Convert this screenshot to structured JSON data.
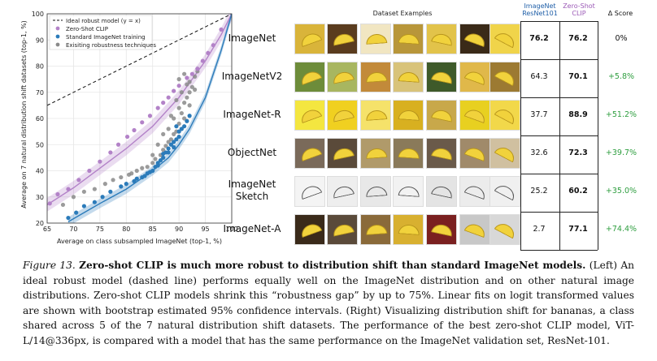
{
  "chart_data": {
    "type": "scatter",
    "xlabel": "Average on class subsampled ImageNet (top-1, %)",
    "ylabel": "Average on 7 natural distribution shift datasets (top-1, %)",
    "xlim": [
      65,
      100
    ],
    "ylim": [
      20,
      100
    ],
    "xticks": [
      "65",
      "70",
      "75",
      "80",
      "85",
      "90",
      "95",
      "100"
    ],
    "yticks": [
      "20",
      "30",
      "40",
      "50",
      "60",
      "70",
      "80",
      "90",
      "100"
    ],
    "legend": [
      {
        "label": "Ideal robust model (y = x)",
        "color": "#111111",
        "style": "dashed"
      },
      {
        "label": "Zero-Shot CLIP",
        "color": "#b382c8",
        "style": "dot"
      },
      {
        "label": "Standard ImageNet training",
        "color": "#2b7bba",
        "style": "dot"
      },
      {
        "label": "Exisiting robustness techniques",
        "color": "#8a8a8a",
        "style": "dot"
      }
    ],
    "clip_points": [
      [
        65.5,
        27.5
      ],
      [
        67,
        31
      ],
      [
        69,
        33
      ],
      [
        71,
        36.5
      ],
      [
        73,
        40
      ],
      [
        75,
        43.5
      ],
      [
        77,
        47
      ],
      [
        78.5,
        50
      ],
      [
        80.2,
        53
      ],
      [
        81.5,
        55.5
      ],
      [
        83,
        58.5
      ],
      [
        84.5,
        61
      ],
      [
        86,
        64
      ],
      [
        87,
        66
      ],
      [
        88,
        68
      ],
      [
        89,
        70.5
      ],
      [
        90,
        72.5
      ],
      [
        91.5,
        75.5
      ],
      [
        92.5,
        77
      ],
      [
        93.5,
        79
      ],
      [
        94.5,
        82
      ],
      [
        95.5,
        85
      ],
      [
        96.5,
        88
      ],
      [
        98,
        94
      ]
    ],
    "standard_points": [
      [
        69,
        22
      ],
      [
        70.5,
        24
      ],
      [
        72,
        26.5
      ],
      [
        74,
        28
      ],
      [
        75.5,
        30
      ],
      [
        77,
        32
      ],
      [
        79,
        34
      ],
      [
        80,
        35
      ],
      [
        81.5,
        36
      ],
      [
        82,
        37
      ],
      [
        83,
        37.5
      ],
      [
        83.5,
        38
      ],
      [
        84,
        39
      ],
      [
        84.5,
        39.5
      ],
      [
        85,
        40
      ],
      [
        85.5,
        41.5
      ],
      [
        86,
        42
      ],
      [
        86,
        43
      ],
      [
        86.5,
        44
      ],
      [
        87,
        45
      ],
      [
        87,
        46.5
      ],
      [
        87.5,
        47
      ],
      [
        88,
        47
      ],
      [
        88,
        48.5
      ],
      [
        88.5,
        50
      ],
      [
        89,
        49
      ],
      [
        89,
        51
      ],
      [
        89.5,
        52
      ],
      [
        90,
        53
      ],
      [
        90,
        55
      ],
      [
        90.5,
        56
      ],
      [
        91,
        57
      ],
      [
        91.5,
        59
      ],
      [
        92,
        61
      ],
      [
        89.5,
        57
      ]
    ],
    "robust_points": [
      [
        68,
        27
      ],
      [
        70,
        30
      ],
      [
        72,
        32
      ],
      [
        74,
        33
      ],
      [
        76,
        35
      ],
      [
        77.5,
        36.5
      ],
      [
        79,
        37.5
      ],
      [
        80.5,
        38.5
      ],
      [
        81,
        39
      ],
      [
        82,
        40
      ],
      [
        83,
        41
      ],
      [
        84,
        41.5
      ],
      [
        85,
        43
      ],
      [
        85.5,
        44.5
      ],
      [
        86.5,
        46
      ],
      [
        87,
        48
      ],
      [
        87.5,
        49.5
      ],
      [
        88,
        51
      ],
      [
        88.5,
        52
      ],
      [
        89,
        54
      ],
      [
        89.5,
        55
      ],
      [
        90,
        58
      ],
      [
        90.5,
        62
      ],
      [
        91,
        66
      ],
      [
        91.5,
        68
      ],
      [
        90,
        64
      ],
      [
        92,
        70
      ],
      [
        92.5,
        72
      ],
      [
        93,
        76
      ],
      [
        89,
        60
      ],
      [
        91,
        60
      ],
      [
        92,
        65
      ],
      [
        86,
        50
      ],
      [
        88,
        56
      ],
      [
        93,
        71
      ],
      [
        91.5,
        73
      ],
      [
        89.5,
        67
      ],
      [
        90.5,
        70
      ],
      [
        92,
        74
      ],
      [
        88.5,
        61
      ],
      [
        85,
        46
      ],
      [
        87,
        54
      ],
      [
        93.5,
        78
      ],
      [
        90,
        75
      ],
      [
        91,
        77
      ]
    ],
    "ideal_line": [
      [
        65,
        65
      ],
      [
        100,
        100
      ]
    ],
    "clip_fit": [
      [
        65,
        27
      ],
      [
        70,
        33.5
      ],
      [
        75,
        41
      ],
      [
        80,
        48.5
      ],
      [
        85,
        57
      ],
      [
        90,
        68
      ],
      [
        95,
        82
      ],
      [
        98,
        92
      ],
      [
        100,
        100
      ]
    ],
    "standard_fit": [
      [
        69,
        20.5
      ],
      [
        75,
        27.5
      ],
      [
        80,
        33
      ],
      [
        85,
        40
      ],
      [
        88,
        45
      ],
      [
        90,
        50
      ],
      [
        92,
        56
      ],
      [
        95,
        68
      ],
      [
        98,
        86
      ],
      [
        100,
        100
      ]
    ],
    "clip_color": "#b382c8",
    "standard_color": "#2b7bba",
    "robust_color": "#8a8a8a"
  },
  "panel": {
    "examples_header": "Dataset Examples",
    "col_resnet": [
      "ImageNet",
      "ResNet101"
    ],
    "col_clip": [
      "Zero-Shot",
      "CLIP"
    ],
    "col_delta": "Δ Score",
    "resnet_color": "#1f5fa8",
    "clip_color": "#9b59b6",
    "delta_color": "#2e9e3f",
    "rows": [
      {
        "name": [
          "ImageNet"
        ],
        "resnet": "76.2",
        "clip": "76.2",
        "delta": "0%",
        "delta_positive": false
      },
      {
        "name": [
          "ImageNetV2"
        ],
        "resnet": "64.3",
        "clip": "70.1",
        "delta": "+5.8%",
        "delta_positive": true
      },
      {
        "name": [
          "ImageNet-R"
        ],
        "resnet": "37.7",
        "clip": "88.9",
        "delta": "+51.2%",
        "delta_positive": true
      },
      {
        "name": [
          "ObjectNet"
        ],
        "resnet": "32.6",
        "clip": "72.3",
        "delta": "+39.7%",
        "delta_positive": true
      },
      {
        "name": [
          "ImageNet",
          "Sketch"
        ],
        "resnet": "25.2",
        "clip": "60.2",
        "delta": "+35.0%",
        "delta_positive": true
      },
      {
        "name": [
          "ImageNet-A"
        ],
        "resnet": "2.7",
        "clip": "77.1",
        "delta": "+74.4%",
        "delta_positive": true
      }
    ]
  },
  "caption": {
    "label": "Figure 13.",
    "bold": "Zero-shot CLIP is much more robust to distribution shift than standard ImageNet models.",
    "text": " (Left) An ideal robust model (dashed line) performs equally well on the ImageNet distribution and on other natural image distributions. Zero-shot CLIP models shrink this “robustness gap” by up to 75%. Linear fits on logit transformed values are shown with bootstrap estimated 95% confidence intervals. (Right) Visualizing distribution shift for bananas, a class shared across 5 of the 7 natural distribution shift datasets. The performance of the best zero-shot CLIP model, ViT-L/14@336px, is compared with a model that has the same performance on the ImageNet validation set, ResNet-101."
  }
}
